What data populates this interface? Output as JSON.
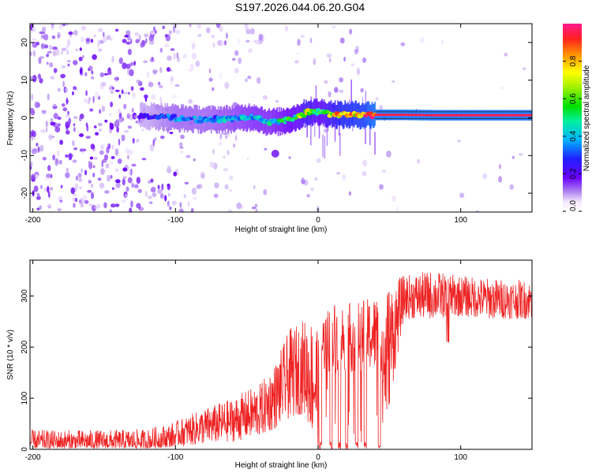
{
  "title": "S197.2026.044.06.20.G04",
  "chart_data": [
    {
      "type": "heatmap",
      "xlabel": "Height of straight line (km)",
      "ylabel": "Frequency (Hz)",
      "xlim": [
        -202,
        150
      ],
      "ylim": [
        -25,
        25
      ],
      "xticks": [
        -200,
        -100,
        0,
        100
      ],
      "yticks": [
        -20,
        -10,
        0,
        10,
        20
      ],
      "colorbar": {
        "label": "Normalized spectral amplitude",
        "range": [
          0,
          1
        ],
        "ticks": [
          0.0,
          0.2,
          0.4,
          0.6,
          0.8
        ],
        "tick_labels": [
          "0.0",
          "0.2",
          "0.4",
          "0.6",
          "0.8"
        ]
      },
      "ridge": {
        "description": "dominant frequency track vs height",
        "x": [
          -120,
          -100,
          -80,
          -60,
          -45,
          -35,
          -25,
          -15,
          -8,
          0,
          15,
          30,
          40,
          60,
          80,
          100,
          120,
          150
        ],
        "freq": [
          0.5,
          0.0,
          -0.5,
          -0.3,
          0.3,
          -1.2,
          -0.9,
          0.2,
          1.5,
          1.5,
          0.8,
          0.8,
          0.8,
          0.8,
          0.7,
          0.7,
          0.7,
          0.7
        ],
        "amplitude": [
          0.25,
          0.35,
          0.35,
          0.4,
          0.45,
          0.45,
          0.5,
          0.55,
          0.7,
          0.55,
          0.8,
          0.85,
          0.95,
          0.95,
          0.95,
          0.95,
          0.95,
          0.95
        ]
      },
      "secondary_blob": {
        "x": -30,
        "freq": -9.5,
        "amplitude": 0.15
      }
    },
    {
      "type": "line",
      "xlabel": "Height of straight line (km)",
      "ylabel": "SNR (10 * v/v)",
      "xlim": [
        -202,
        150
      ],
      "ylim": [
        0,
        370
      ],
      "xticks": [
        -200,
        -100,
        0,
        100
      ],
      "yticks": [
        0,
        100,
        200,
        300
      ],
      "series": [
        {
          "name": "SNR",
          "color": "#ee2222",
          "envelope_x": [
            -202,
            -150,
            -120,
            -100,
            -80,
            -60,
            -40,
            -30,
            -20,
            -10,
            0,
            5,
            10,
            20,
            30,
            40,
            45,
            60,
            80,
            100,
            120,
            150
          ],
          "envelope_low": [
            2,
            2,
            2,
            5,
            10,
            15,
            25,
            40,
            60,
            70,
            0,
            0,
            0,
            0,
            0,
            0,
            0,
            255,
            255,
            260,
            255,
            255
          ],
          "envelope_high": [
            38,
            38,
            40,
            55,
            80,
            100,
            130,
            170,
            235,
            255,
            260,
            270,
            290,
            285,
            290,
            300,
            320,
            340,
            350,
            340,
            335,
            330
          ],
          "dropouts_x": [
            1.5,
            9,
            15,
            20,
            27,
            33,
            43
          ]
        }
      ]
    }
  ]
}
